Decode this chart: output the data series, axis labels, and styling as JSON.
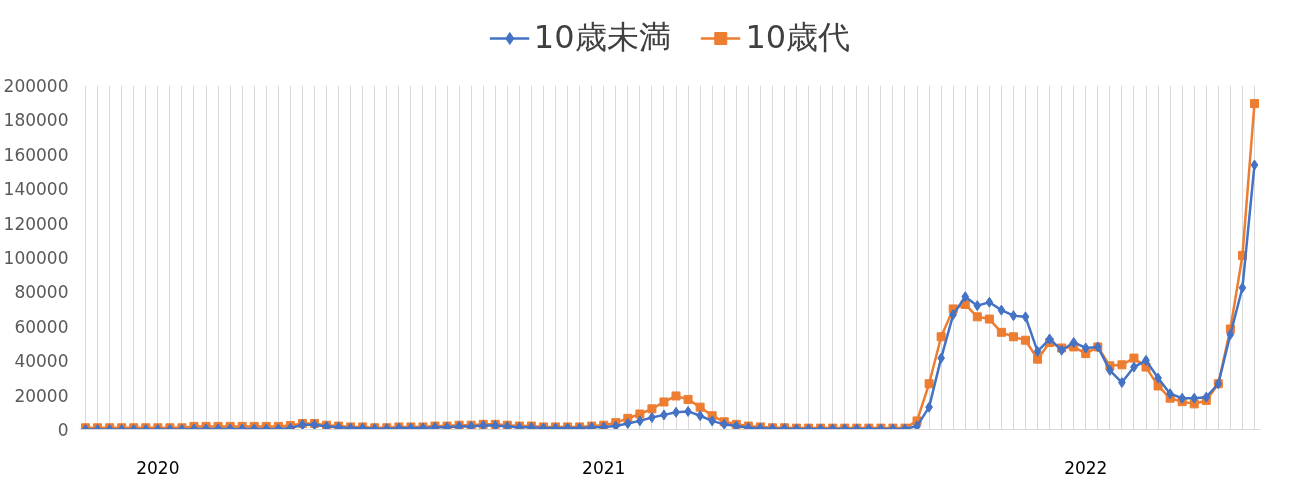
{
  "chart_data": {
    "type": "line",
    "categories": [
      null,
      null,
      null,
      null,
      null,
      null,
      "2020",
      null,
      null,
      null,
      null,
      null,
      null,
      null,
      null,
      null,
      null,
      null,
      null,
      null,
      null,
      null,
      null,
      null,
      null,
      null,
      null,
      null,
      null,
      null,
      null,
      null,
      null,
      null,
      null,
      null,
      null,
      null,
      null,
      null,
      null,
      null,
      null,
      "2021",
      null,
      null,
      null,
      null,
      null,
      null,
      null,
      null,
      null,
      null,
      null,
      null,
      null,
      null,
      null,
      null,
      null,
      null,
      null,
      null,
      null,
      null,
      null,
      null,
      null,
      null,
      null,
      null,
      null,
      null,
      null,
      null,
      null,
      null,
      null,
      null,
      null,
      null,
      null,
      "2022",
      null,
      null,
      null,
      null,
      null,
      null,
      null,
      null,
      null,
      null,
      null,
      null,
      null,
      null
    ],
    "series": [
      {
        "name": "10歳未満",
        "color": "#4472c4",
        "marker": "diamond",
        "values": [
          0,
          0,
          0,
          0,
          0,
          0,
          0,
          0,
          0,
          300,
          300,
          300,
          300,
          300,
          300,
          300,
          300,
          800,
          2800,
          2800,
          1800,
          1300,
          800,
          800,
          500,
          500,
          800,
          800,
          800,
          1300,
          1300,
          1800,
          1800,
          2300,
          2300,
          1800,
          1300,
          1300,
          800,
          800,
          800,
          800,
          1300,
          1500,
          2000,
          3500,
          5000,
          7000,
          8500,
          10000,
          10500,
          8000,
          5000,
          3000,
          2000,
          1000,
          800,
          500,
          500,
          300,
          300,
          300,
          300,
          300,
          300,
          300,
          300,
          300,
          300,
          2000,
          13000,
          41500,
          66800,
          77200,
          72000,
          74000,
          69400,
          66200,
          65500,
          45400,
          52600,
          46100,
          50600,
          47400,
          48000,
          34400,
          27300,
          36300,
          40200,
          29900,
          20800,
          18200,
          18200,
          18800,
          26600,
          55200,
          82400,
          153800
        ]
      },
      {
        "name": "10歳代",
        "color": "#ed7d31",
        "marker": "square",
        "values": [
          1000,
          1000,
          1000,
          1000,
          1000,
          1000,
          1000,
          1000,
          1000,
          1800,
          1800,
          1800,
          1800,
          1800,
          1800,
          1800,
          1800,
          2300,
          3500,
          3500,
          2500,
          2000,
          1500,
          1500,
          1000,
          1000,
          1500,
          1500,
          1500,
          2000,
          2000,
          2500,
          2500,
          3000,
          3000,
          2500,
          2000,
          2000,
          1500,
          1500,
          1500,
          1500,
          2000,
          2500,
          4000,
          6500,
          9000,
          12000,
          16000,
          19500,
          17500,
          13000,
          8000,
          4500,
          3000,
          2000,
          1500,
          1000,
          1000,
          800,
          800,
          800,
          800,
          800,
          800,
          800,
          800,
          800,
          800,
          5000,
          26600,
          53900,
          70100,
          72700,
          65500,
          64200,
          56500,
          53900,
          51900,
          40900,
          50600,
          47400,
          48000,
          44100,
          48000,
          37000,
          37600,
          41500,
          36300,
          25300,
          18200,
          16200,
          14900,
          16900,
          26600,
          58400,
          101200,
          189500
        ]
      }
    ],
    "ylim": [
      0,
      200000
    ],
    "yticks": [
      0,
      20000,
      40000,
      60000,
      80000,
      100000,
      120000,
      140000,
      160000,
      180000,
      200000
    ],
    "grid": "x",
    "legend": "top",
    "line_style": "solid"
  }
}
